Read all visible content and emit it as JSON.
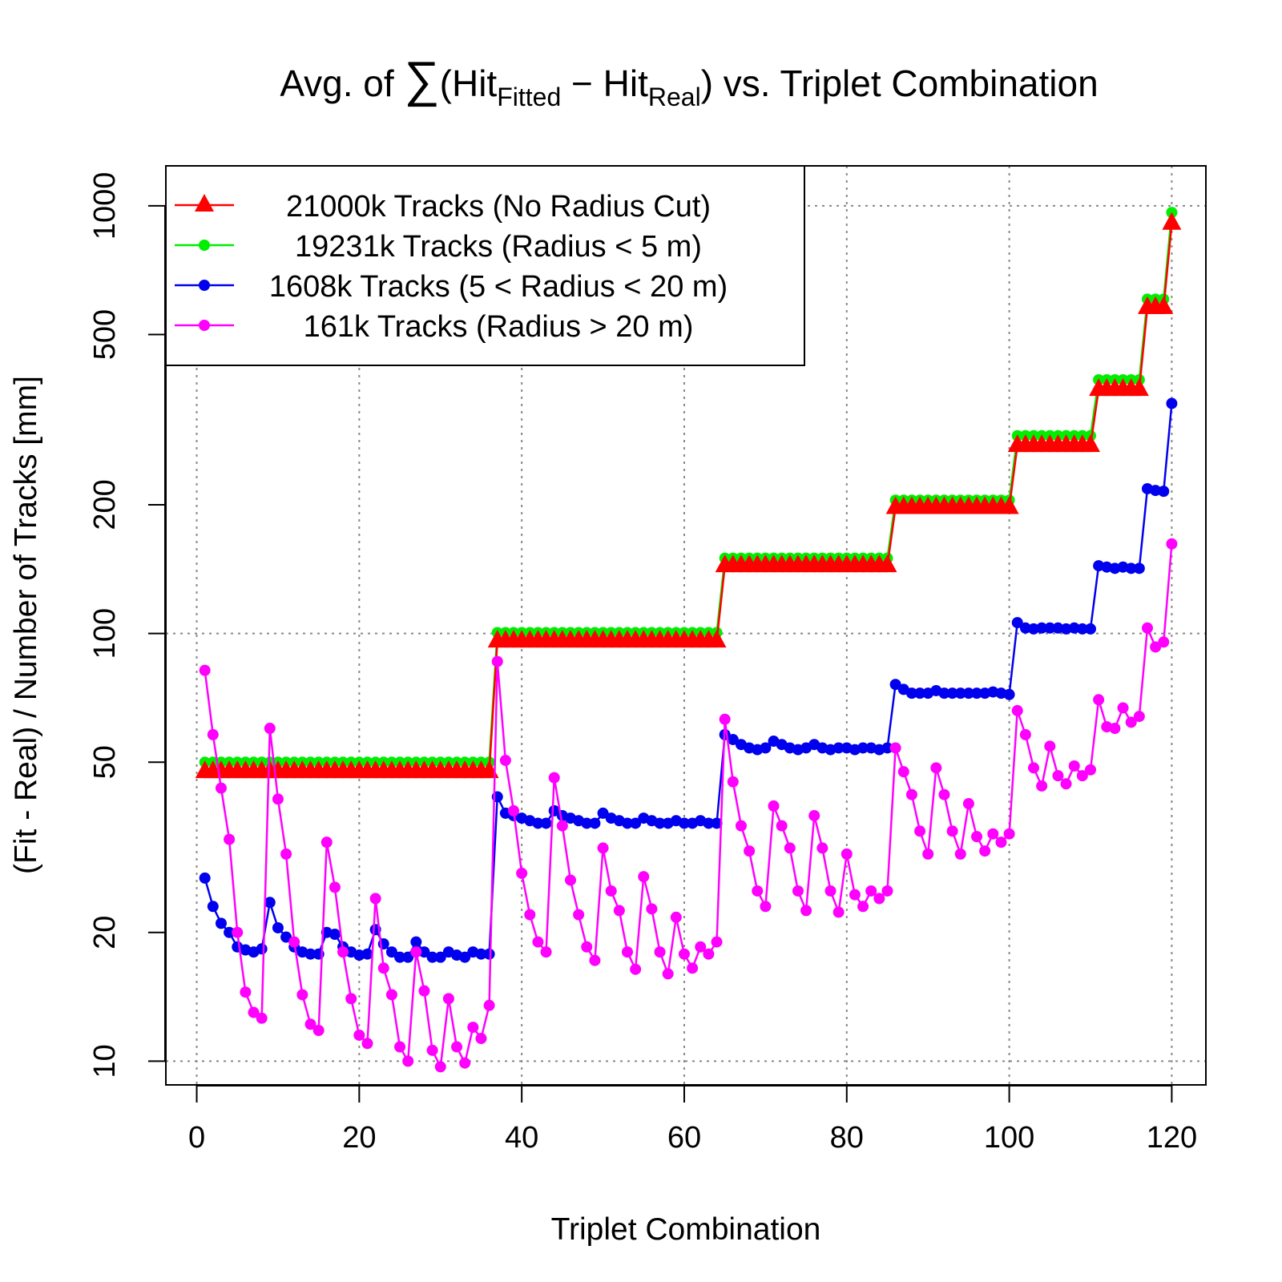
{
  "chart_data": {
    "type": "line",
    "title": {
      "prefix": "Avg. of ",
      "sum_symbol": "∑",
      "open": "(Hit",
      "sub1": "Fitted",
      "minus": " − Hit",
      "sub2": "Real",
      "suffix": ") vs. Triplet Combination"
    },
    "xlabel": "Triplet Combination",
    "ylabel": "(Fit - Real) / Number of Tracks [mm]",
    "xlim": [
      -3.8,
      124.2
    ],
    "ylim": [
      8.8,
      1240
    ],
    "log_y": true,
    "x_ticks": [
      0,
      20,
      40,
      60,
      80,
      100,
      120
    ],
    "x_tick_labels": [
      "0",
      "20",
      "40",
      "60",
      "80",
      "100",
      "120"
    ],
    "y_ticks": [
      10,
      20,
      50,
      100,
      200,
      500,
      1000
    ],
    "y_tick_labels": [
      "10",
      "20",
      "50",
      "100",
      "200",
      "500",
      "1000"
    ],
    "grid": true,
    "legend_position": "top-left",
    "series": [
      {
        "name": "21000k Tracks (No Radius Cut)",
        "color": "#ff0000",
        "marker": "triangle",
        "segments": [
          {
            "from": 1,
            "to": 36,
            "value": 47.5
          },
          {
            "from": 37,
            "to": 64,
            "value": 96
          },
          {
            "from": 65,
            "to": 85,
            "value": 144
          },
          {
            "from": 86,
            "to": 100,
            "value": 197
          },
          {
            "from": 101,
            "to": 110,
            "value": 275
          },
          {
            "from": 111,
            "to": 116,
            "value": 372
          },
          {
            "from": 117,
            "to": 119,
            "value": 578
          },
          {
            "from": 120,
            "to": 120,
            "value": 910
          }
        ]
      },
      {
        "name": "19231k Tracks (Radius < 5 m)",
        "color": "#00ee00",
        "marker": "circle",
        "segments": [
          {
            "from": 1,
            "to": 36,
            "value": 50
          },
          {
            "from": 37,
            "to": 64,
            "value": 100.5
          },
          {
            "from": 65,
            "to": 85,
            "value": 150
          },
          {
            "from": 86,
            "to": 100,
            "value": 205
          },
          {
            "from": 101,
            "to": 110,
            "value": 290
          },
          {
            "from": 111,
            "to": 116,
            "value": 392
          },
          {
            "from": 117,
            "to": 119,
            "value": 605
          },
          {
            "from": 120,
            "to": 120,
            "value": 965
          }
        ]
      },
      {
        "name": "1608k Tracks (5 < Radius < 20 m)",
        "color": "#0000ee",
        "marker": "circle",
        "points": [
          [
            1,
            26.8
          ],
          [
            2,
            23
          ],
          [
            3,
            21
          ],
          [
            4,
            20
          ],
          [
            5,
            18.5
          ],
          [
            6,
            18.2
          ],
          [
            7,
            18
          ],
          [
            8,
            18.3
          ],
          [
            9,
            23.5
          ],
          [
            10,
            20.5
          ],
          [
            11,
            19.5
          ],
          [
            12,
            18.5
          ],
          [
            13,
            18
          ],
          [
            14,
            17.8
          ],
          [
            15,
            17.8
          ],
          [
            16,
            20
          ],
          [
            17,
            19.8
          ],
          [
            18,
            18.5
          ],
          [
            19,
            18
          ],
          [
            20,
            17.7
          ],
          [
            21,
            17.8
          ],
          [
            22,
            20.3
          ],
          [
            23,
            18.8
          ],
          [
            24,
            18
          ],
          [
            25,
            17.5
          ],
          [
            26,
            17.5
          ],
          [
            27,
            19
          ],
          [
            28,
            18
          ],
          [
            29,
            17.5
          ],
          [
            30,
            17.5
          ],
          [
            31,
            18
          ],
          [
            32,
            17.7
          ],
          [
            33,
            17.5
          ],
          [
            34,
            18
          ],
          [
            35,
            17.8
          ],
          [
            36,
            17.8
          ],
          [
            37,
            41.5
          ],
          [
            38,
            38
          ],
          [
            39,
            37.5
          ],
          [
            40,
            37
          ],
          [
            41,
            36.5
          ],
          [
            42,
            36
          ],
          [
            43,
            36
          ],
          [
            44,
            38.5
          ],
          [
            45,
            37.5
          ],
          [
            46,
            37
          ],
          [
            47,
            36.5
          ],
          [
            48,
            36
          ],
          [
            49,
            36
          ],
          [
            50,
            38
          ],
          [
            51,
            37
          ],
          [
            52,
            36.5
          ],
          [
            53,
            36
          ],
          [
            54,
            36
          ],
          [
            55,
            37
          ],
          [
            56,
            36.5
          ],
          [
            57,
            36
          ],
          [
            58,
            36
          ],
          [
            59,
            36.5
          ],
          [
            60,
            36
          ],
          [
            61,
            36
          ],
          [
            62,
            36.5
          ],
          [
            63,
            36
          ],
          [
            64,
            36
          ],
          [
            65,
            58
          ],
          [
            66,
            56.5
          ],
          [
            67,
            55
          ],
          [
            68,
            54
          ],
          [
            69,
            53.5
          ],
          [
            70,
            54
          ],
          [
            71,
            56
          ],
          [
            72,
            55
          ],
          [
            73,
            54
          ],
          [
            74,
            53.5
          ],
          [
            75,
            54
          ],
          [
            76,
            55
          ],
          [
            77,
            54
          ],
          [
            78,
            53.5
          ],
          [
            79,
            54
          ],
          [
            80,
            54
          ],
          [
            81,
            53.5
          ],
          [
            82,
            54
          ],
          [
            83,
            54
          ],
          [
            84,
            53.5
          ],
          [
            85,
            54
          ],
          [
            86,
            76
          ],
          [
            87,
            74
          ],
          [
            88,
            72.5
          ],
          [
            89,
            72.5
          ],
          [
            90,
            72.5
          ],
          [
            91,
            73.5
          ],
          [
            92,
            72.5
          ],
          [
            93,
            72.5
          ],
          [
            94,
            72.5
          ],
          [
            95,
            72.5
          ],
          [
            96,
            72.5
          ],
          [
            97,
            72.5
          ],
          [
            98,
            73
          ],
          [
            99,
            72.5
          ],
          [
            100,
            72
          ],
          [
            101,
            106
          ],
          [
            102,
            103
          ],
          [
            103,
            102.5
          ],
          [
            104,
            103
          ],
          [
            105,
            103
          ],
          [
            106,
            103
          ],
          [
            107,
            102.5
          ],
          [
            108,
            103
          ],
          [
            109,
            102.5
          ],
          [
            110,
            102.5
          ],
          [
            111,
            144
          ],
          [
            112,
            143
          ],
          [
            113,
            142
          ],
          [
            114,
            143
          ],
          [
            115,
            142
          ],
          [
            116,
            142
          ],
          [
            117,
            218
          ],
          [
            118,
            216
          ],
          [
            119,
            215
          ],
          [
            120,
            345
          ]
        ]
      },
      {
        "name": "161k Tracks (Radius > 20 m)",
        "color": "#ff00ff",
        "marker": "circle",
        "points": [
          [
            1,
            82
          ],
          [
            2,
            58
          ],
          [
            3,
            43.5
          ],
          [
            4,
            33
          ],
          [
            5,
            20
          ],
          [
            6,
            14.5
          ],
          [
            7,
            13
          ],
          [
            8,
            12.6
          ],
          [
            9,
            60
          ],
          [
            10,
            41
          ],
          [
            11,
            30.5
          ],
          [
            12,
            19
          ],
          [
            13,
            14.3
          ],
          [
            14,
            12.2
          ],
          [
            15,
            11.8
          ],
          [
            16,
            32.5
          ],
          [
            17,
            25.5
          ],
          [
            18,
            18
          ],
          [
            19,
            14
          ],
          [
            20,
            11.5
          ],
          [
            21,
            11
          ],
          [
            22,
            24
          ],
          [
            23,
            16.5
          ],
          [
            24,
            14.3
          ],
          [
            25,
            10.8
          ],
          [
            26,
            10
          ],
          [
            27,
            18
          ],
          [
            28,
            14.6
          ],
          [
            29,
            10.6
          ],
          [
            30,
            9.7
          ],
          [
            31,
            14
          ],
          [
            32,
            10.8
          ],
          [
            33,
            9.9
          ],
          [
            34,
            12
          ],
          [
            35,
            11.3
          ],
          [
            36,
            13.5
          ],
          [
            37,
            86
          ],
          [
            38,
            50.5
          ],
          [
            39,
            38.5
          ],
          [
            40,
            27.5
          ],
          [
            41,
            22
          ],
          [
            42,
            19
          ],
          [
            43,
            18
          ],
          [
            44,
            46
          ],
          [
            45,
            35.5
          ],
          [
            46,
            26.5
          ],
          [
            47,
            22
          ],
          [
            48,
            18.5
          ],
          [
            49,
            17.2
          ],
          [
            50,
            31.5
          ],
          [
            51,
            25
          ],
          [
            52,
            22.5
          ],
          [
            53,
            18
          ],
          [
            54,
            16.4
          ],
          [
            55,
            27
          ],
          [
            56,
            22.7
          ],
          [
            57,
            18
          ],
          [
            58,
            16
          ],
          [
            59,
            21.7
          ],
          [
            60,
            17.8
          ],
          [
            61,
            16.5
          ],
          [
            62,
            18.5
          ],
          [
            63,
            17.8
          ],
          [
            64,
            19
          ],
          [
            65,
            63
          ],
          [
            66,
            45
          ],
          [
            67,
            35.5
          ],
          [
            68,
            31
          ],
          [
            69,
            25
          ],
          [
            70,
            23
          ],
          [
            71,
            39.5
          ],
          [
            72,
            35.5
          ],
          [
            73,
            31.5
          ],
          [
            74,
            25
          ],
          [
            75,
            22.5
          ],
          [
            76,
            37.5
          ],
          [
            77,
            31.5
          ],
          [
            78,
            25
          ],
          [
            79,
            22.3
          ],
          [
            80,
            30.5
          ],
          [
            81,
            24.5
          ],
          [
            82,
            23
          ],
          [
            83,
            25
          ],
          [
            84,
            24
          ],
          [
            85,
            25
          ],
          [
            86,
            54
          ],
          [
            87,
            47.5
          ],
          [
            88,
            42
          ],
          [
            89,
            34.5
          ],
          [
            90,
            30.5
          ],
          [
            91,
            48.5
          ],
          [
            92,
            42
          ],
          [
            93,
            34.5
          ],
          [
            94,
            30.5
          ],
          [
            95,
            40
          ],
          [
            96,
            33.5
          ],
          [
            97,
            31
          ],
          [
            98,
            34
          ],
          [
            99,
            32.5
          ],
          [
            100,
            34
          ],
          [
            101,
            66
          ],
          [
            102,
            58
          ],
          [
            103,
            48.5
          ],
          [
            104,
            44
          ],
          [
            105,
            54.5
          ],
          [
            106,
            46.5
          ],
          [
            107,
            44.5
          ],
          [
            108,
            49
          ],
          [
            109,
            46.5
          ],
          [
            110,
            48
          ],
          [
            111,
            70
          ],
          [
            112,
            60.5
          ],
          [
            113,
            60
          ],
          [
            114,
            67
          ],
          [
            115,
            62
          ],
          [
            116,
            64
          ],
          [
            117,
            103
          ],
          [
            118,
            93
          ],
          [
            119,
            95.5
          ],
          [
            120,
            162
          ]
        ]
      }
    ]
  }
}
